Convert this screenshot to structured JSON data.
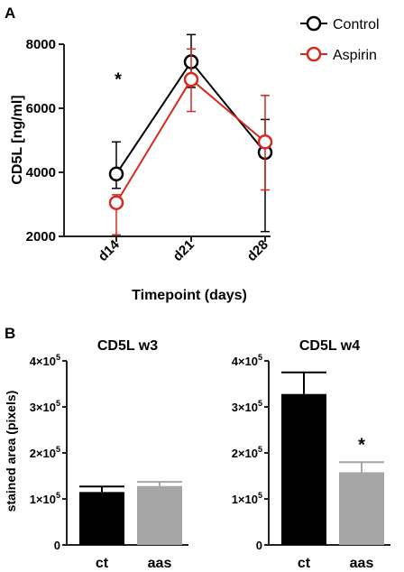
{
  "panels": {
    "a_label": "A",
    "b_label": "B"
  },
  "colors": {
    "control": "#000000",
    "aspirin": "#d42a1f",
    "bar_ct": "#000000",
    "bar_aas": "#a6a6a6"
  },
  "chart_data": [
    {
      "type": "line",
      "title": "",
      "xlabel": "Timepoint (days)",
      "ylabel": "CD5L [ng/ml]",
      "categories": [
        "d14",
        "d21",
        "d28"
      ],
      "ylim": [
        2000,
        8000
      ],
      "yticks": [
        2000,
        4000,
        6000,
        8000
      ],
      "ytick_labels": [
        "2000",
        "4000",
        "6000",
        "8000"
      ],
      "legend_position": "top-right",
      "series": [
        {
          "name": "Control",
          "values": [
            3950,
            7450,
            4620
          ],
          "err_low": [
            3500,
            6650,
            2150
          ],
          "err_high": [
            4950,
            8300,
            5650
          ]
        },
        {
          "name": "Aspirin",
          "values": [
            3050,
            6900,
            4950
          ],
          "err_low": [
            2050,
            5900,
            3450
          ],
          "err_high": [
            3300,
            7850,
            6400
          ]
        }
      ],
      "annotations": [
        {
          "category": "d14",
          "text": "*",
          "y": 6950
        }
      ]
    },
    {
      "type": "bar",
      "title": "CD5L w3",
      "xlabel": "",
      "ylabel": "stained area (pixels)",
      "categories": [
        "ct",
        "aas"
      ],
      "values": [
        115000,
        128000
      ],
      "err_high": [
        127000,
        137000
      ],
      "ylim": [
        0,
        400000
      ],
      "yticks": [
        0,
        100000,
        200000,
        300000,
        400000
      ],
      "ytick_labels": [
        {
          "base": "0",
          "exp": ""
        },
        {
          "base": "1×10",
          "exp": "5"
        },
        {
          "base": "2×10",
          "exp": "5"
        },
        {
          "base": "3×10",
          "exp": "5"
        },
        {
          "base": "4×10",
          "exp": "5"
        }
      ],
      "annotations": []
    },
    {
      "type": "bar",
      "title": "CD5L w4",
      "xlabel": "",
      "ylabel": "",
      "categories": [
        "ct",
        "aas"
      ],
      "values": [
        328000,
        158000
      ],
      "err_high": [
        375000,
        180000
      ],
      "ylim": [
        0,
        400000
      ],
      "yticks": [
        0,
        100000,
        200000,
        300000,
        400000
      ],
      "ytick_labels": [
        {
          "base": "0",
          "exp": ""
        },
        {
          "base": "1×10",
          "exp": "5"
        },
        {
          "base": "2×10",
          "exp": "5"
        },
        {
          "base": "3×10",
          "exp": "5"
        },
        {
          "base": "4×10",
          "exp": "5"
        }
      ],
      "annotations": [
        {
          "category": "aas",
          "text": "*",
          "y": 205000
        }
      ]
    }
  ]
}
